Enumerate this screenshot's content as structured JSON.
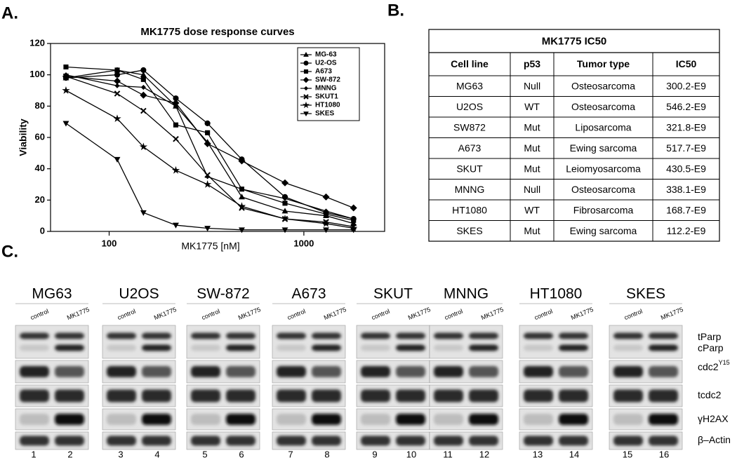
{
  "panel_labels": {
    "a": "A.",
    "b": "B.",
    "c": "C."
  },
  "chart_data": {
    "type": "line",
    "title": "MK1775 dose response curves",
    "x_label": "MK1775 [nM]",
    "y_label": "Viability",
    "x": [
      60,
      110,
      150,
      220,
      320,
      480,
      800,
      1300,
      1800
    ],
    "xlim": [
      50,
      2600
    ],
    "xticks": [
      100,
      1000
    ],
    "x_log": true,
    "ylim": [
      0,
      120
    ],
    "yticks": [
      0,
      20,
      40,
      60,
      80,
      100,
      120
    ],
    "legend": "upper right",
    "series": [
      {
        "name": "MG-63",
        "color": "#000000",
        "marker": "triangle-up",
        "values": [
          98,
          103,
          100,
          80,
          57,
          22,
          13,
          10,
          5
        ]
      },
      {
        "name": "U2-OS",
        "color": "#000000",
        "marker": "circle",
        "values": [
          98,
          100,
          103,
          85,
          69,
          46,
          22,
          12,
          8
        ]
      },
      {
        "name": "A673",
        "color": "#000000",
        "marker": "square",
        "values": [
          105,
          103,
          97,
          68,
          63,
          27,
          18,
          11,
          7
        ]
      },
      {
        "name": "SW-872",
        "color": "#000000",
        "marker": "diamond",
        "values": [
          99,
          96,
          87,
          82,
          56,
          45,
          31,
          22,
          15
        ]
      },
      {
        "name": "MNNG",
        "color": "#000000",
        "marker": "small-diamond",
        "values": [
          100,
          93,
          92,
          80,
          35,
          27,
          21,
          13,
          8
        ]
      },
      {
        "name": "SKUT1",
        "color": "#000000",
        "marker": "cross",
        "values": [
          99,
          88,
          77,
          59,
          36,
          15,
          8,
          6,
          3
        ]
      },
      {
        "name": "HT1080",
        "color": "#000000",
        "marker": "star",
        "values": [
          90,
          72,
          54,
          39,
          30,
          16,
          8,
          5,
          2
        ]
      },
      {
        "name": "SKES",
        "color": "#000000",
        "marker": "triangle-down",
        "values": [
          69,
          46,
          12,
          4,
          2,
          1,
          1,
          1,
          1
        ]
      }
    ]
  },
  "table": {
    "title": "MK1775 IC50",
    "header": [
      "Cell line",
      "p53",
      "Tumor type",
      "IC50"
    ],
    "rows": [
      [
        "MG63",
        "Null",
        "Osteosarcoma",
        "300.2-E9"
      ],
      [
        "U2OS",
        "WT",
        "Osteosarcoma",
        "546.2-E9"
      ],
      [
        "SW872",
        "Mut",
        "Liposarcoma",
        "321.8-E9"
      ],
      [
        "A673",
        "Mut",
        "Ewing sarcoma",
        "517.7-E9"
      ],
      [
        "SKUT",
        "Mut",
        "Leiomyosarcoma",
        "430.5-E9"
      ],
      [
        "MNNG",
        "Null",
        "Osteosarcoma",
        "338.1-E9"
      ],
      [
        "HT1080",
        "WT",
        "Fibrosarcoma",
        "168.7-E9"
      ],
      [
        "SKES",
        "Mut",
        "Ewing sarcoma",
        "112.2-E9"
      ]
    ]
  },
  "blot": {
    "panels": [
      {
        "name": "MG63",
        "lanes": [
          "control",
          "MK1775"
        ],
        "numbers": [
          1,
          2
        ]
      },
      {
        "name": "U2OS",
        "lanes": [
          "control",
          "MK1775"
        ],
        "numbers": [
          3,
          4
        ]
      },
      {
        "name": "SW-872",
        "lanes": [
          "control",
          "MK1775"
        ],
        "numbers": [
          5,
          6
        ]
      },
      {
        "name": "A673",
        "lanes": [
          "control",
          "MK1775"
        ],
        "numbers": [
          7,
          8
        ]
      },
      {
        "name": "SKUT",
        "lanes": [
          "control",
          "MK1775"
        ],
        "numbers": [
          9,
          10
        ]
      },
      {
        "name": "MNNG",
        "lanes": [
          "control",
          "MK1775"
        ],
        "numbers": [
          11,
          12
        ]
      },
      {
        "name": "HT1080",
        "lanes": [
          "control",
          "MK1775"
        ],
        "numbers": [
          13,
          14
        ]
      },
      {
        "name": "SKES",
        "lanes": [
          "control",
          "MK1775"
        ],
        "numbers": [
          15,
          16
        ]
      }
    ],
    "rows": [
      {
        "label": "tParp"
      },
      {
        "label": "cParp"
      },
      {
        "label": "cdc2",
        "sup": "Y15"
      },
      {
        "label": "tcdc2"
      },
      {
        "label": "γH2AX"
      },
      {
        "label": "β–Actin"
      }
    ]
  }
}
